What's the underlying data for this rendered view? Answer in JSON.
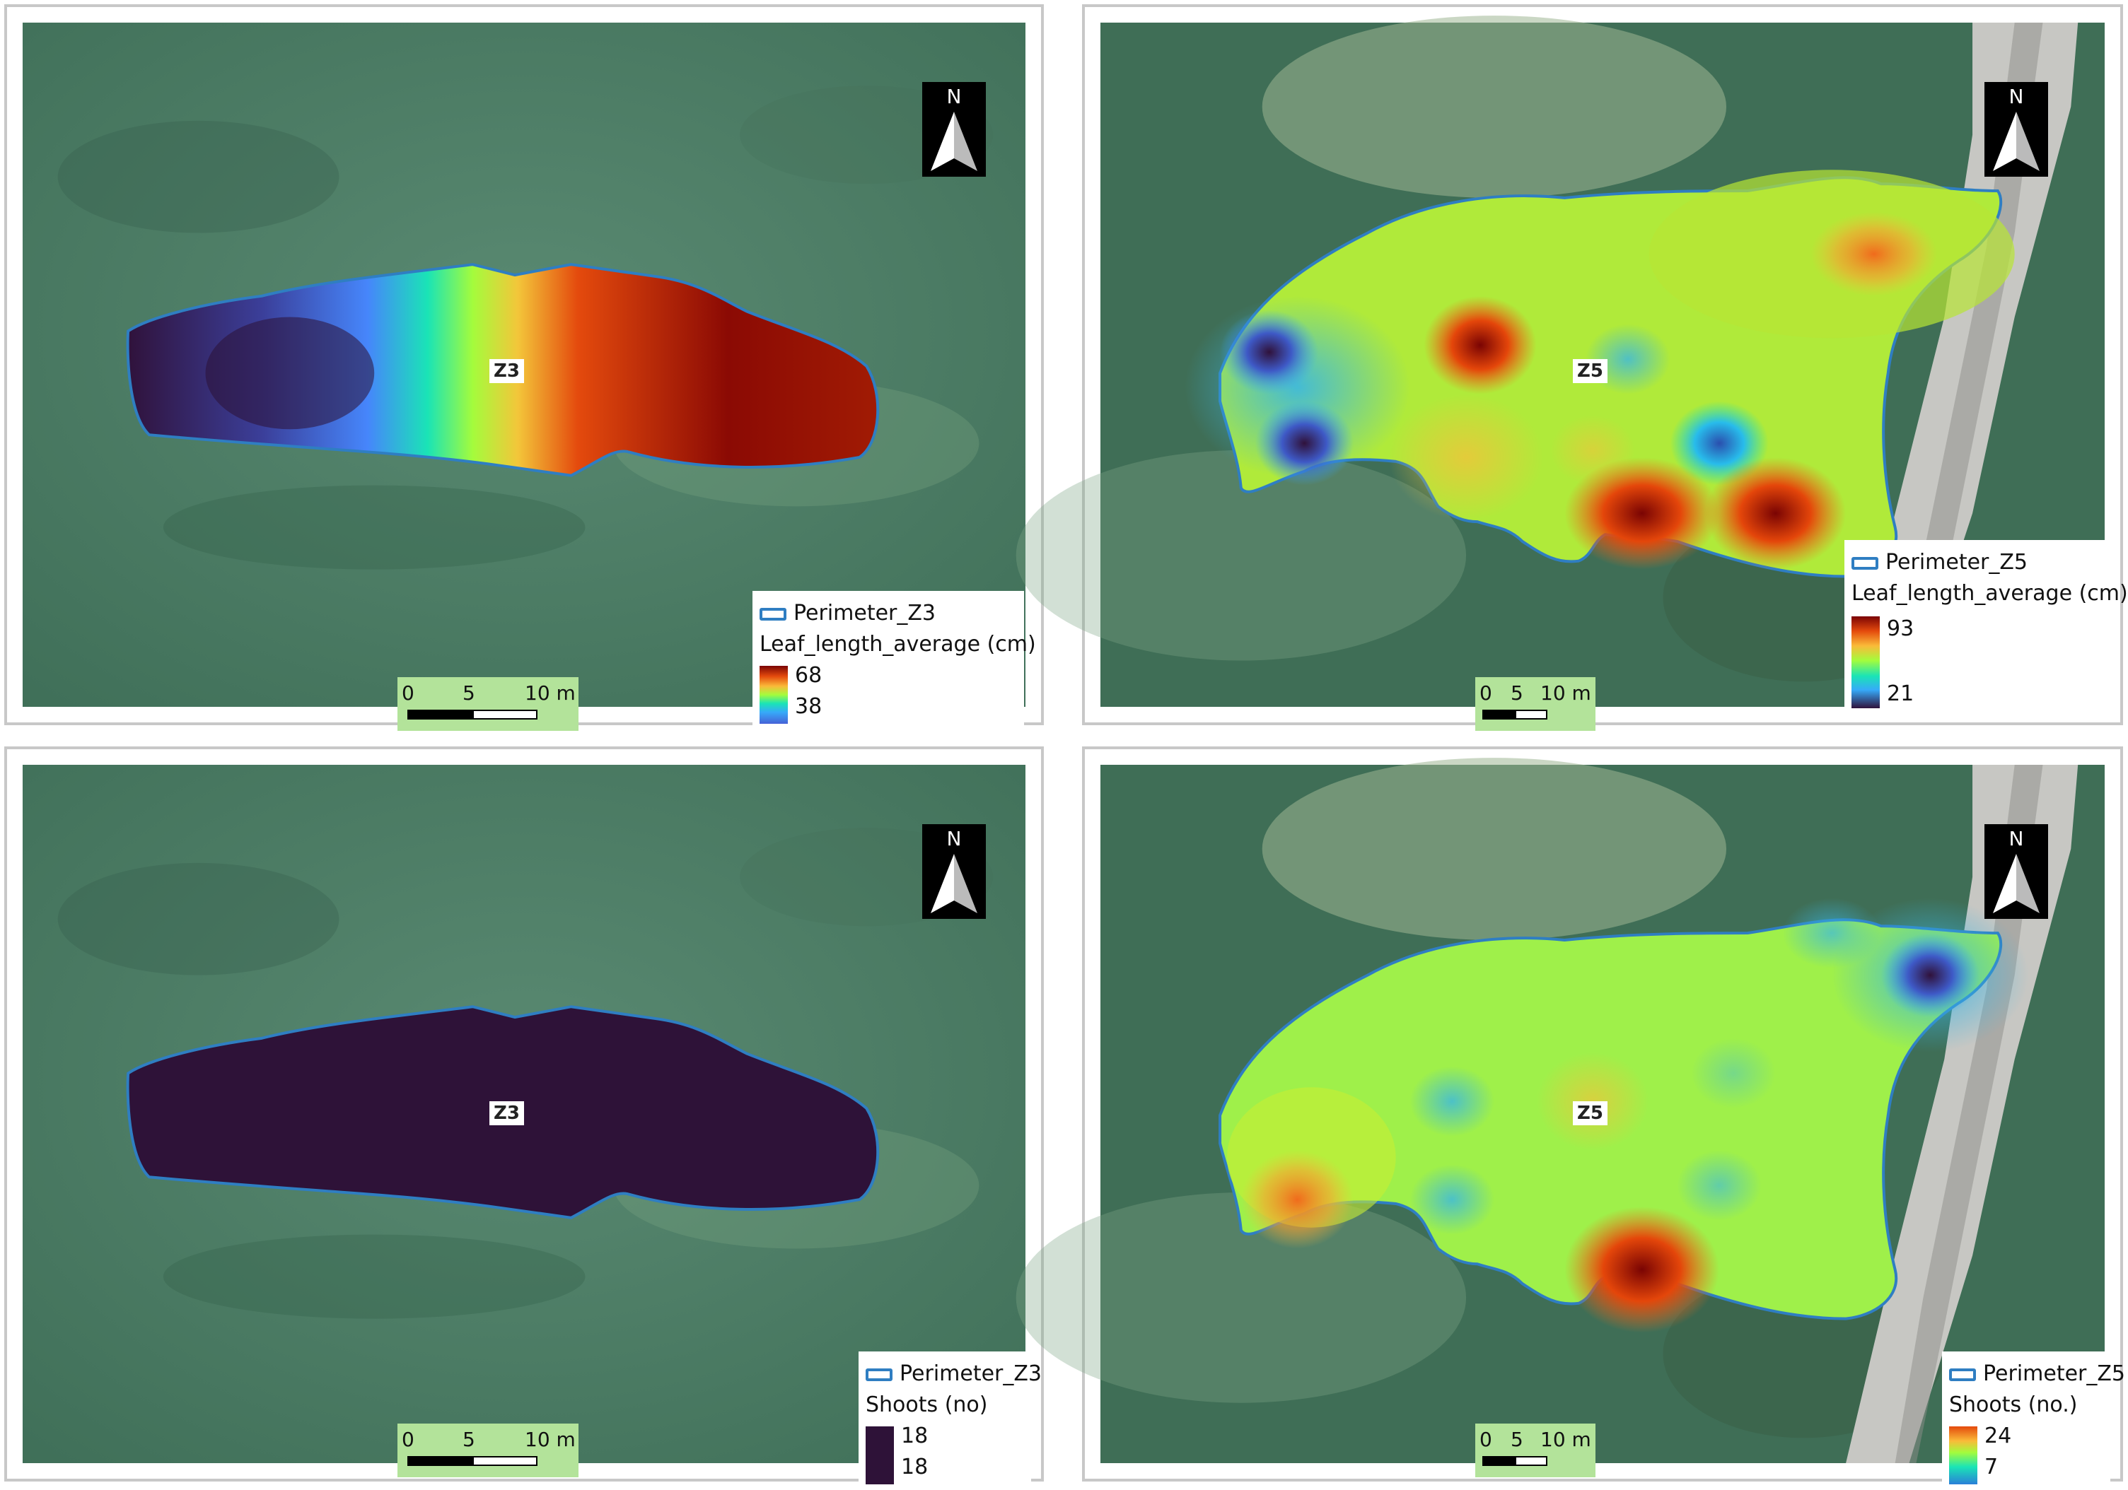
{
  "colors": {
    "perimeter_stroke": "#2f7ec2",
    "scalebar_bg": "#b3e39a",
    "shoots_z3_fill": "#2e1238"
  },
  "panels": {
    "top_left": {
      "zone": "Z3",
      "legend": {
        "perimeter": "Perimeter_Z3",
        "field": "Leaf_length_average (cm)",
        "max": "68",
        "min": "38"
      },
      "scalebar": {
        "t0": "0",
        "t1": "5",
        "t2": "10 m"
      },
      "north": "N"
    },
    "top_right": {
      "zone": "Z5",
      "legend": {
        "perimeter": "Perimeter_Z5",
        "field": "Leaf_length_average (cm)",
        "max": "93",
        "min": "21"
      },
      "scalebar": {
        "t0": "0",
        "t1": "5",
        "t2": "10 m"
      },
      "north": "N"
    },
    "bottom_left": {
      "zone": "Z3",
      "legend": {
        "perimeter": "Perimeter_Z3",
        "field": "Shoots (no)",
        "max": "18",
        "min": "18"
      },
      "scalebar": {
        "t0": "0",
        "t1": "5",
        "t2": "10 m"
      },
      "north": "N"
    },
    "bottom_right": {
      "zone": "Z5",
      "legend": {
        "perimeter": "Perimeter_Z5",
        "field": "Shoots (no.)",
        "max": "24",
        "min": "7"
      },
      "scalebar": {
        "t0": "0",
        "t1": "5",
        "t2": "10 m"
      },
      "north": "N"
    }
  }
}
